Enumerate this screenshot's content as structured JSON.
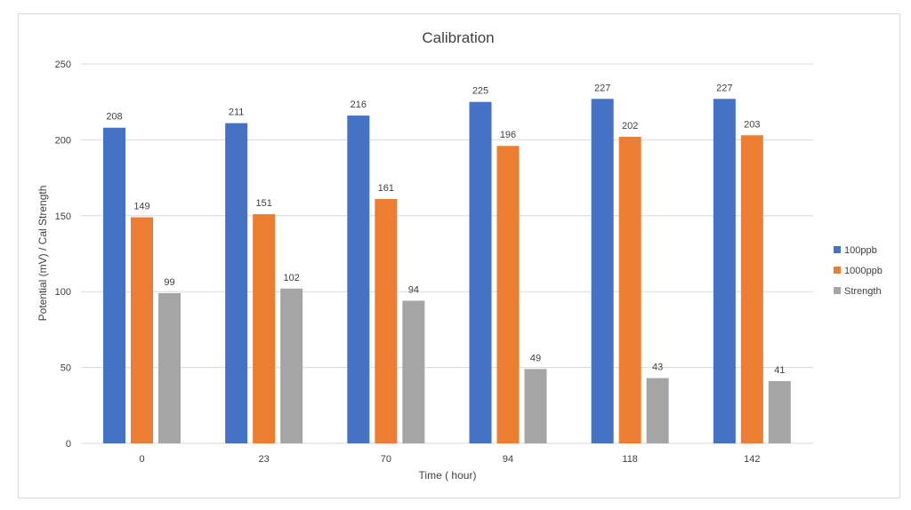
{
  "chart_data": {
    "type": "bar",
    "title": "Calibration",
    "xlabel": "Time ( hour)",
    "ylabel": "Potential (mV) / Cal Strength",
    "categories": [
      "0",
      "23",
      "70",
      "94",
      "118",
      "142"
    ],
    "ylim": [
      0,
      250
    ],
    "yticks": [
      0,
      50,
      100,
      150,
      200,
      250
    ],
    "grid": true,
    "legend_position": "right",
    "series": [
      {
        "name": "100ppb",
        "color": "#4472c4",
        "values": [
          208,
          211,
          216,
          225,
          227,
          227
        ]
      },
      {
        "name": "1000ppb",
        "color": "#ed7d31",
        "values": [
          149,
          151,
          161,
          196,
          202,
          203
        ]
      },
      {
        "name": "Strength",
        "color": "#a5a5a5",
        "values": [
          99,
          102,
          94,
          49,
          43,
          41
        ]
      }
    ]
  }
}
